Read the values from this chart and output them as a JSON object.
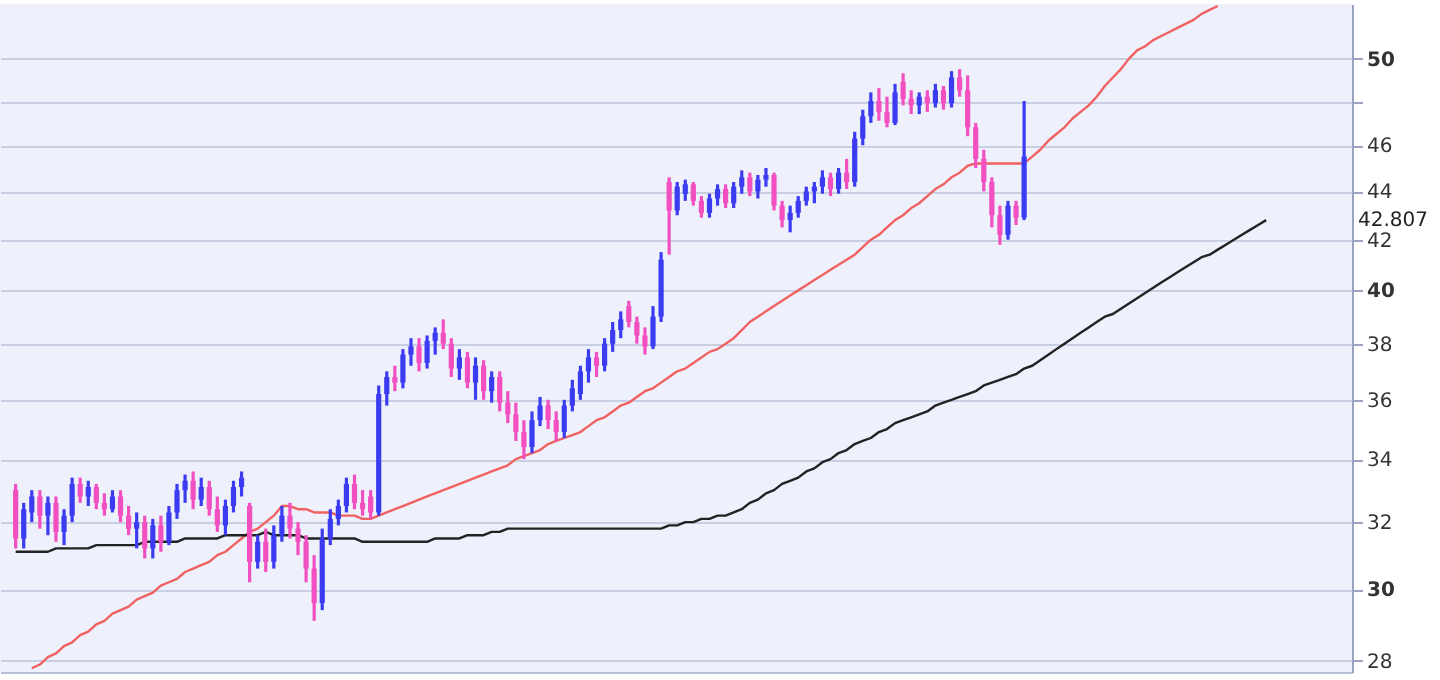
{
  "chart_data": {
    "type": "candlestick",
    "categories": [
      null,
      null,
      null,
      null,
      null,
      null,
      null,
      null,
      null,
      null,
      null,
      null,
      null,
      null,
      null,
      null,
      null,
      null,
      null,
      null,
      null,
      null,
      null,
      null,
      null,
      null,
      null,
      null,
      null,
      null,
      null,
      null,
      null,
      null,
      null,
      null,
      null,
      null,
      null,
      null,
      null,
      null,
      null,
      null,
      null,
      null,
      null,
      null,
      null,
      null,
      null,
      null,
      null,
      null,
      null,
      null,
      null,
      null,
      null,
      null,
      null,
      null,
      null,
      null,
      null,
      null,
      null,
      null,
      null,
      null,
      null,
      null,
      null,
      null,
      null,
      null,
      null,
      null,
      null,
      null,
      null,
      null,
      null,
      null,
      null,
      null,
      null,
      null,
      null,
      null,
      null,
      null,
      null,
      null,
      null,
      null,
      null,
      null,
      null,
      null,
      null,
      null,
      null,
      null,
      null,
      null,
      null,
      null,
      null,
      null,
      null,
      null,
      null,
      null,
      null,
      null,
      null,
      null,
      null,
      null,
      null,
      null,
      null,
      null,
      null,
      null,
      null,
      null,
      null,
      null,
      null,
      null,
      null,
      null,
      null,
      null,
      null,
      null,
      null,
      null,
      null,
      null,
      null,
      null,
      null,
      null,
      null,
      null,
      null,
      null,
      null,
      null,
      null,
      null,
      null,
      null
    ],
    "ohlc": [
      [
        33.0,
        33.2,
        31.2,
        31.5
      ],
      [
        31.5,
        32.6,
        31.2,
        32.4
      ],
      [
        32.3,
        33.0,
        32.0,
        32.8
      ],
      [
        32.8,
        33.0,
        31.8,
        32.2
      ],
      [
        32.2,
        32.8,
        31.6,
        32.6
      ],
      [
        32.6,
        32.8,
        31.4,
        31.7
      ],
      [
        31.7,
        32.4,
        31.3,
        32.2
      ],
      [
        32.2,
        33.4,
        32.0,
        33.2
      ],
      [
        33.2,
        33.4,
        32.6,
        32.8
      ],
      [
        32.8,
        33.3,
        32.5,
        33.1
      ],
      [
        33.1,
        33.2,
        32.4,
        32.6
      ],
      [
        32.6,
        32.9,
        32.2,
        32.4
      ],
      [
        32.4,
        33.0,
        32.3,
        32.8
      ],
      [
        32.8,
        33.0,
        32.0,
        32.2
      ],
      [
        32.2,
        32.5,
        31.6,
        31.8
      ],
      [
        31.8,
        32.3,
        31.2,
        32.0
      ],
      [
        32.0,
        32.2,
        30.9,
        31.2
      ],
      [
        31.2,
        32.1,
        30.9,
        31.9
      ],
      [
        31.9,
        32.2,
        31.1,
        31.4
      ],
      [
        31.4,
        32.5,
        31.3,
        32.3
      ],
      [
        32.3,
        33.2,
        32.1,
        33.0
      ],
      [
        33.0,
        33.5,
        32.6,
        33.3
      ],
      [
        33.3,
        33.6,
        32.4,
        32.7
      ],
      [
        32.7,
        33.4,
        32.5,
        33.1
      ],
      [
        33.1,
        33.3,
        32.2,
        32.4
      ],
      [
        32.4,
        32.8,
        31.7,
        31.9
      ],
      [
        31.9,
        32.7,
        31.6,
        32.5
      ],
      [
        32.5,
        33.3,
        32.3,
        33.1
      ],
      [
        33.1,
        33.6,
        32.8,
        33.4
      ],
      [
        32.5,
        32.6,
        30.2,
        30.8
      ],
      [
        30.8,
        31.6,
        30.6,
        31.4
      ],
      [
        31.4,
        31.8,
        30.5,
        30.8
      ],
      [
        30.8,
        31.9,
        30.6,
        31.6
      ],
      [
        31.6,
        32.5,
        31.4,
        32.2
      ],
      [
        32.2,
        32.6,
        31.5,
        31.8
      ],
      [
        31.8,
        32.0,
        31.0,
        31.4
      ],
      [
        31.4,
        31.6,
        30.2,
        30.6
      ],
      [
        30.6,
        31.0,
        29.1,
        29.6
      ],
      [
        29.6,
        31.8,
        29.4,
        31.5
      ],
      [
        31.5,
        32.4,
        31.3,
        32.1
      ],
      [
        32.1,
        32.7,
        31.9,
        32.5
      ],
      [
        32.5,
        33.4,
        32.3,
        33.2
      ],
      [
        33.2,
        33.5,
        32.4,
        32.6
      ],
      [
        32.6,
        33.0,
        32.2,
        32.4
      ],
      [
        32.8,
        33.0,
        32.1,
        32.3
      ],
      [
        32.3,
        36.5,
        32.2,
        36.2
      ],
      [
        36.2,
        37.0,
        35.8,
        36.8
      ],
      [
        36.8,
        37.2,
        36.3,
        36.6
      ],
      [
        36.6,
        37.8,
        36.4,
        37.6
      ],
      [
        37.6,
        38.2,
        37.2,
        37.9
      ],
      [
        37.9,
        38.2,
        37.0,
        37.3
      ],
      [
        37.3,
        38.3,
        37.1,
        38.1
      ],
      [
        38.1,
        38.6,
        37.6,
        38.4
      ],
      [
        38.4,
        38.9,
        37.8,
        38.0
      ],
      [
        38.0,
        38.2,
        36.8,
        37.1
      ],
      [
        37.1,
        37.8,
        36.7,
        37.5
      ],
      [
        37.5,
        37.7,
        36.4,
        36.6
      ],
      [
        36.6,
        37.5,
        36.0,
        37.2
      ],
      [
        37.2,
        37.4,
        36.0,
        36.3
      ],
      [
        36.3,
        37.0,
        35.9,
        36.8
      ],
      [
        36.8,
        37.0,
        35.6,
        35.9
      ],
      [
        35.9,
        36.3,
        35.2,
        35.5
      ],
      [
        35.5,
        35.9,
        34.6,
        34.9
      ],
      [
        34.9,
        35.3,
        34.0,
        34.4
      ],
      [
        34.4,
        35.6,
        34.2,
        35.3
      ],
      [
        35.3,
        36.1,
        35.1,
        35.8
      ],
      [
        35.8,
        36.0,
        35.0,
        35.3
      ],
      [
        35.3,
        35.6,
        34.6,
        34.9
      ],
      [
        34.9,
        36.0,
        34.7,
        35.8
      ],
      [
        35.8,
        36.7,
        35.6,
        36.4
      ],
      [
        36.2,
        37.2,
        36.0,
        37.0
      ],
      [
        37.0,
        37.8,
        36.6,
        37.5
      ],
      [
        37.5,
        37.7,
        36.8,
        37.2
      ],
      [
        37.2,
        38.2,
        37.0,
        38.0
      ],
      [
        38.0,
        38.8,
        37.7,
        38.5
      ],
      [
        38.5,
        39.2,
        38.2,
        38.9
      ],
      [
        39.4,
        39.6,
        38.6,
        38.8
      ],
      [
        38.8,
        39.0,
        38.0,
        38.3
      ],
      [
        38.3,
        38.6,
        37.6,
        37.9
      ],
      [
        37.9,
        39.4,
        37.8,
        39.0
      ],
      [
        39.0,
        41.5,
        38.8,
        41.2
      ],
      [
        44.4,
        44.6,
        41.4,
        43.2
      ],
      [
        43.2,
        44.4,
        43.0,
        44.2
      ],
      [
        43.9,
        44.5,
        43.6,
        44.3
      ],
      [
        44.3,
        44.4,
        43.4,
        43.6
      ],
      [
        43.6,
        43.8,
        42.9,
        43.1
      ],
      [
        43.1,
        43.9,
        42.9,
        43.7
      ],
      [
        43.7,
        44.3,
        43.4,
        44.1
      ],
      [
        44.1,
        44.3,
        43.3,
        43.5
      ],
      [
        43.5,
        44.4,
        43.3,
        44.2
      ],
      [
        44.2,
        44.9,
        43.9,
        44.6
      ],
      [
        44.6,
        44.8,
        43.8,
        44.0
      ],
      [
        44.0,
        44.7,
        43.7,
        44.5
      ],
      [
        44.5,
        45.0,
        44.2,
        44.7
      ],
      [
        44.7,
        44.8,
        43.2,
        43.4
      ],
      [
        43.4,
        43.6,
        42.5,
        42.8
      ],
      [
        42.8,
        43.4,
        42.3,
        43.1
      ],
      [
        43.1,
        43.8,
        42.9,
        43.6
      ],
      [
        43.6,
        44.2,
        43.4,
        44.0
      ],
      [
        44.0,
        44.4,
        43.5,
        44.2
      ],
      [
        44.2,
        44.9,
        43.9,
        44.6
      ],
      [
        44.6,
        44.8,
        43.8,
        44.1
      ],
      [
        44.1,
        45.0,
        43.9,
        44.8
      ],
      [
        44.8,
        45.4,
        44.1,
        44.4
      ],
      [
        44.4,
        46.6,
        44.2,
        46.3
      ],
      [
        46.3,
        47.6,
        46.0,
        47.3
      ],
      [
        47.3,
        48.4,
        47.0,
        48.0
      ],
      [
        48.0,
        48.6,
        47.1,
        47.5
      ],
      [
        47.5,
        48.2,
        46.8,
        47.0
      ],
      [
        47.0,
        48.8,
        46.9,
        48.4
      ],
      [
        48.9,
        49.3,
        47.8,
        48.1
      ],
      [
        48.1,
        48.5,
        47.4,
        47.8
      ],
      [
        47.8,
        48.4,
        47.4,
        48.2
      ],
      [
        48.2,
        48.5,
        47.5,
        47.9
      ],
      [
        47.9,
        48.8,
        47.7,
        48.5
      ],
      [
        48.5,
        48.7,
        47.6,
        47.9
      ],
      [
        47.9,
        49.4,
        47.7,
        49.1
      ],
      [
        49.1,
        49.5,
        48.2,
        48.5
      ],
      [
        48.5,
        49.2,
        46.4,
        46.8
      ],
      [
        46.8,
        47.0,
        45.0,
        45.4
      ],
      [
        45.4,
        45.8,
        44.0,
        44.4
      ],
      [
        44.4,
        44.6,
        42.5,
        43.0
      ],
      [
        43.0,
        43.4,
        41.8,
        42.2
      ],
      [
        42.2,
        43.6,
        42.0,
        43.4
      ],
      [
        43.4,
        43.6,
        42.6,
        42.9
      ],
      [
        42.9,
        48.0,
        42.8,
        45.5
      ],
      null,
      null,
      null,
      null,
      null,
      null,
      null,
      null,
      null,
      null,
      null,
      null,
      null,
      null,
      null,
      null,
      null,
      null,
      null,
      null,
      null,
      null,
      null,
      null,
      null,
      null,
      null,
      null,
      null,
      null
    ],
    "colors": [
      "#f24fc0",
      "#3b3bf2",
      "#3b3bf2",
      "#f24fc0",
      "#3b3bf2",
      "#f24fc0",
      "#3b3bf2",
      "#3b3bf2",
      "#f24fc0",
      "#3b3bf2",
      "#f24fc0",
      "#f24fc0",
      "#3b3bf2",
      "#f24fc0",
      "#f24fc0",
      "#3b3bf2",
      "#f24fc0",
      "#3b3bf2",
      "#f24fc0",
      "#3b3bf2",
      "#3b3bf2",
      "#3b3bf2",
      "#f24fc0",
      "#3b3bf2",
      "#f24fc0",
      "#f24fc0",
      "#3b3bf2",
      "#3b3bf2",
      "#3b3bf2",
      "#f24fc0",
      "#3b3bf2",
      "#f24fc0",
      "#3b3bf2",
      "#3b3bf2",
      "#f24fc0",
      "#f24fc0",
      "#f24fc0",
      "#f24fc0",
      "#3b3bf2",
      "#3b3bf2",
      "#3b3bf2",
      "#3b3bf2",
      "#f24fc0",
      "#f24fc0",
      "#f24fc0",
      "#3b3bf2",
      "#3b3bf2",
      "#f24fc0",
      "#3b3bf2",
      "#3b3bf2",
      "#f24fc0",
      "#3b3bf2",
      "#3b3bf2",
      "#f24fc0",
      "#f24fc0",
      "#3b3bf2",
      "#f24fc0",
      "#3b3bf2",
      "#f24fc0",
      "#3b3bf2",
      "#f24fc0",
      "#f24fc0",
      "#f24fc0",
      "#f24fc0",
      "#3b3bf2",
      "#3b3bf2",
      "#f24fc0",
      "#f24fc0",
      "#3b3bf2",
      "#3b3bf2",
      "#3b3bf2",
      "#3b3bf2",
      "#f24fc0",
      "#3b3bf2",
      "#3b3bf2",
      "#3b3bf2",
      "#f24fc0",
      "#f24fc0",
      "#f24fc0",
      "#3b3bf2",
      "#3b3bf2",
      "#f24fc0",
      "#3b3bf2",
      "#3b3bf2",
      "#f24fc0",
      "#f24fc0",
      "#3b3bf2",
      "#3b3bf2",
      "#f24fc0",
      "#3b3bf2",
      "#3b3bf2",
      "#f24fc0",
      "#3b3bf2",
      "#3b3bf2",
      "#f24fc0",
      "#f24fc0",
      "#3b3bf2",
      "#3b3bf2",
      "#3b3bf2",
      "#3b3bf2",
      "#3b3bf2",
      "#f24fc0",
      "#3b3bf2",
      "#f24fc0",
      "#3b3bf2",
      "#3b3bf2",
      "#3b3bf2",
      "#f24fc0",
      "#f24fc0",
      "#3b3bf2",
      "#f24fc0",
      "#f24fc0",
      "#3b3bf2",
      "#f24fc0",
      "#3b3bf2",
      "#f24fc0",
      "#3b3bf2",
      "#f24fc0",
      "#f24fc0",
      "#f24fc0",
      "#f24fc0",
      "#f24fc0",
      "#f24fc0",
      "#3b3bf2",
      "#f24fc0",
      "#3b3bf2",
      null,
      null,
      null,
      null,
      null,
      null,
      null,
      null,
      null,
      null,
      null,
      null,
      null,
      null,
      null,
      null,
      null,
      null,
      null,
      null,
      null,
      null,
      null,
      null,
      null,
      null,
      null,
      null,
      null,
      null
    ],
    "series": [
      {
        "type": "line",
        "color": "#f06262",
        "values": [
          null,
          null,
          27.8,
          27.9,
          28.1,
          28.2,
          28.4,
          28.5,
          28.7,
          28.8,
          29.0,
          29.1,
          29.3,
          29.4,
          29.5,
          29.7,
          29.8,
          29.9,
          30.1,
          30.2,
          30.3,
          30.5,
          30.6,
          30.7,
          30.8,
          31.0,
          31.1,
          31.3,
          31.5,
          31.7,
          31.8,
          32.0,
          32.2,
          32.5,
          32.5,
          32.4,
          32.4,
          32.3,
          32.3,
          32.3,
          32.2,
          32.2,
          32.2,
          32.1,
          32.1,
          32.2,
          32.3,
          32.4,
          32.5,
          32.6,
          32.7,
          32.8,
          32.9,
          33.0,
          33.1,
          33.2,
          33.3,
          33.4,
          33.5,
          33.6,
          33.7,
          33.8,
          34.0,
          34.1,
          34.2,
          34.3,
          34.5,
          34.6,
          34.7,
          34.8,
          34.9,
          35.1,
          35.3,
          35.4,
          35.6,
          35.8,
          35.9,
          36.1,
          36.3,
          36.4,
          36.6,
          36.8,
          37.0,
          37.1,
          37.3,
          37.5,
          37.7,
          37.8,
          38.0,
          38.2,
          38.5,
          38.8,
          39.0,
          39.2,
          39.4,
          39.6,
          39.8,
          40.0,
          40.2,
          40.4,
          40.6,
          40.8,
          41.0,
          41.2,
          41.4,
          41.7,
          42.0,
          42.2,
          42.5,
          42.8,
          43.0,
          43.3,
          43.5,
          43.8,
          44.1,
          44.3,
          44.6,
          44.8,
          45.1,
          45.2,
          45.2,
          45.2,
          45.2,
          45.2,
          45.2,
          45.2,
          45.5,
          45.8,
          46.2,
          46.5,
          46.8,
          47.2,
          47.5,
          47.8,
          48.2,
          48.7,
          49.1,
          49.5,
          50.0,
          50.4,
          50.6,
          50.9,
          51.1,
          51.3,
          51.5,
          51.7,
          51.9,
          52.2,
          52.4,
          52.6,
          null,
          null,
          null,
          null,
          null,
          null
        ]
      },
      {
        "type": "line",
        "color": "#222222",
        "values": [
          31.1,
          31.1,
          31.1,
          31.1,
          31.1,
          31.2,
          31.2,
          31.2,
          31.2,
          31.2,
          31.3,
          31.3,
          31.3,
          31.3,
          31.3,
          31.3,
          31.4,
          31.4,
          31.4,
          31.4,
          31.4,
          31.5,
          31.5,
          31.5,
          31.5,
          31.5,
          31.6,
          31.6,
          31.6,
          31.6,
          31.6,
          31.7,
          31.6,
          31.6,
          31.6,
          31.6,
          31.5,
          31.5,
          31.5,
          31.5,
          31.5,
          31.5,
          31.5,
          31.4,
          31.4,
          31.4,
          31.4,
          31.4,
          31.4,
          31.4,
          31.4,
          31.4,
          31.5,
          31.5,
          31.5,
          31.5,
          31.6,
          31.6,
          31.6,
          31.7,
          31.7,
          31.8,
          31.8,
          31.8,
          31.8,
          31.8,
          31.8,
          31.8,
          31.8,
          31.8,
          31.8,
          31.8,
          31.8,
          31.8,
          31.8,
          31.8,
          31.8,
          31.8,
          31.8,
          31.8,
          31.8,
          31.9,
          31.9,
          32.0,
          32.0,
          32.1,
          32.1,
          32.2,
          32.2,
          32.3,
          32.4,
          32.6,
          32.7,
          32.9,
          33.0,
          33.2,
          33.3,
          33.4,
          33.6,
          33.7,
          33.9,
          34.0,
          34.2,
          34.3,
          34.5,
          34.6,
          34.7,
          34.9,
          35.0,
          35.2,
          35.3,
          35.4,
          35.5,
          35.6,
          35.8,
          35.9,
          36.0,
          36.1,
          36.2,
          36.3,
          36.5,
          36.6,
          36.7,
          36.8,
          36.9,
          37.1,
          37.2,
          37.4,
          37.6,
          37.8,
          38.0,
          38.2,
          38.4,
          38.6,
          38.8,
          39.0,
          39.1,
          39.3,
          39.5,
          39.7,
          39.9,
          40.1,
          40.3,
          40.5,
          40.7,
          40.9,
          41.1,
          41.3,
          41.4,
          41.6,
          41.8,
          42.0,
          42.2,
          42.4,
          42.6,
          42.8
        ]
      }
    ],
    "annotations": [
      "42.807"
    ],
    "log": "y",
    "ylim": [
      27.7,
      52.7
    ],
    "yticks": [
      28,
      30,
      32,
      34,
      36,
      38,
      40,
      42,
      44,
      46,
      {
        "value": 48,
        "label": null
      },
      50
    ],
    "grid": "y",
    "tick_labels": "y"
  }
}
